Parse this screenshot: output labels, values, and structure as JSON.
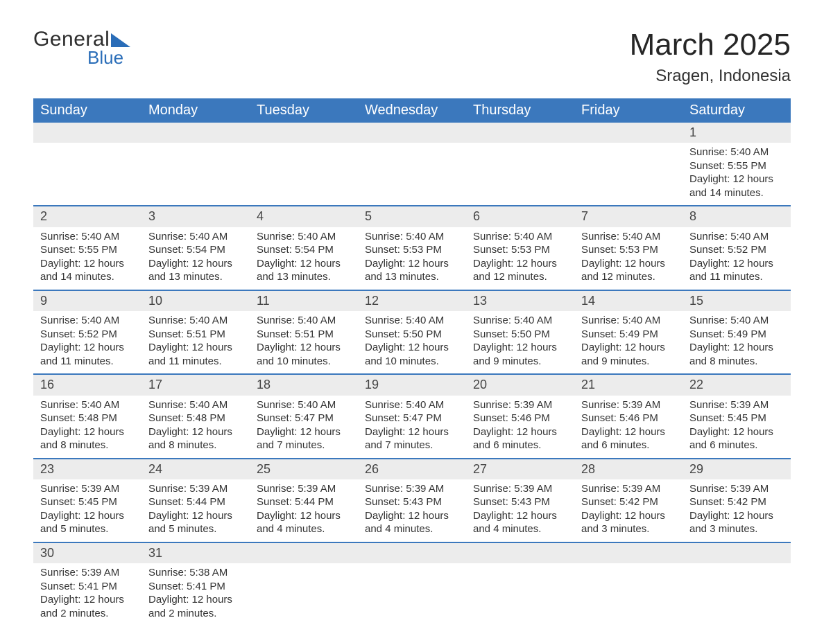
{
  "logo": {
    "line1": "General",
    "line2": "Blue"
  },
  "title": {
    "month_year": "March 2025",
    "location": "Sragen, Indonesia"
  },
  "colors": {
    "header_bg": "#3b78bd",
    "header_text": "#ffffff",
    "daynum_bg": "#ececec",
    "row_divider": "#3b78bd",
    "body_text": "#333333",
    "logo_blue": "#2a6db8",
    "page_bg": "#ffffff"
  },
  "typography": {
    "title_fontsize": 44,
    "subtitle_fontsize": 24,
    "header_fontsize": 20,
    "daynum_fontsize": 18,
    "body_fontsize": 15,
    "font_family": "Arial"
  },
  "header_days": [
    "Sunday",
    "Monday",
    "Tuesday",
    "Wednesday",
    "Thursday",
    "Friday",
    "Saturday"
  ],
  "weeks": [
    [
      null,
      null,
      null,
      null,
      null,
      null,
      {
        "n": "1",
        "sr": "Sunrise: 5:40 AM",
        "ss": "Sunset: 5:55 PM",
        "d1": "Daylight: 12 hours",
        "d2": "and 14 minutes."
      }
    ],
    [
      {
        "n": "2",
        "sr": "Sunrise: 5:40 AM",
        "ss": "Sunset: 5:55 PM",
        "d1": "Daylight: 12 hours",
        "d2": "and 14 minutes."
      },
      {
        "n": "3",
        "sr": "Sunrise: 5:40 AM",
        "ss": "Sunset: 5:54 PM",
        "d1": "Daylight: 12 hours",
        "d2": "and 13 minutes."
      },
      {
        "n": "4",
        "sr": "Sunrise: 5:40 AM",
        "ss": "Sunset: 5:54 PM",
        "d1": "Daylight: 12 hours",
        "d2": "and 13 minutes."
      },
      {
        "n": "5",
        "sr": "Sunrise: 5:40 AM",
        "ss": "Sunset: 5:53 PM",
        "d1": "Daylight: 12 hours",
        "d2": "and 13 minutes."
      },
      {
        "n": "6",
        "sr": "Sunrise: 5:40 AM",
        "ss": "Sunset: 5:53 PM",
        "d1": "Daylight: 12 hours",
        "d2": "and 12 minutes."
      },
      {
        "n": "7",
        "sr": "Sunrise: 5:40 AM",
        "ss": "Sunset: 5:53 PM",
        "d1": "Daylight: 12 hours",
        "d2": "and 12 minutes."
      },
      {
        "n": "8",
        "sr": "Sunrise: 5:40 AM",
        "ss": "Sunset: 5:52 PM",
        "d1": "Daylight: 12 hours",
        "d2": "and 11 minutes."
      }
    ],
    [
      {
        "n": "9",
        "sr": "Sunrise: 5:40 AM",
        "ss": "Sunset: 5:52 PM",
        "d1": "Daylight: 12 hours",
        "d2": "and 11 minutes."
      },
      {
        "n": "10",
        "sr": "Sunrise: 5:40 AM",
        "ss": "Sunset: 5:51 PM",
        "d1": "Daylight: 12 hours",
        "d2": "and 11 minutes."
      },
      {
        "n": "11",
        "sr": "Sunrise: 5:40 AM",
        "ss": "Sunset: 5:51 PM",
        "d1": "Daylight: 12 hours",
        "d2": "and 10 minutes."
      },
      {
        "n": "12",
        "sr": "Sunrise: 5:40 AM",
        "ss": "Sunset: 5:50 PM",
        "d1": "Daylight: 12 hours",
        "d2": "and 10 minutes."
      },
      {
        "n": "13",
        "sr": "Sunrise: 5:40 AM",
        "ss": "Sunset: 5:50 PM",
        "d1": "Daylight: 12 hours",
        "d2": "and 9 minutes."
      },
      {
        "n": "14",
        "sr": "Sunrise: 5:40 AM",
        "ss": "Sunset: 5:49 PM",
        "d1": "Daylight: 12 hours",
        "d2": "and 9 minutes."
      },
      {
        "n": "15",
        "sr": "Sunrise: 5:40 AM",
        "ss": "Sunset: 5:49 PM",
        "d1": "Daylight: 12 hours",
        "d2": "and 8 minutes."
      }
    ],
    [
      {
        "n": "16",
        "sr": "Sunrise: 5:40 AM",
        "ss": "Sunset: 5:48 PM",
        "d1": "Daylight: 12 hours",
        "d2": "and 8 minutes."
      },
      {
        "n": "17",
        "sr": "Sunrise: 5:40 AM",
        "ss": "Sunset: 5:48 PM",
        "d1": "Daylight: 12 hours",
        "d2": "and 8 minutes."
      },
      {
        "n": "18",
        "sr": "Sunrise: 5:40 AM",
        "ss": "Sunset: 5:47 PM",
        "d1": "Daylight: 12 hours",
        "d2": "and 7 minutes."
      },
      {
        "n": "19",
        "sr": "Sunrise: 5:40 AM",
        "ss": "Sunset: 5:47 PM",
        "d1": "Daylight: 12 hours",
        "d2": "and 7 minutes."
      },
      {
        "n": "20",
        "sr": "Sunrise: 5:39 AM",
        "ss": "Sunset: 5:46 PM",
        "d1": "Daylight: 12 hours",
        "d2": "and 6 minutes."
      },
      {
        "n": "21",
        "sr": "Sunrise: 5:39 AM",
        "ss": "Sunset: 5:46 PM",
        "d1": "Daylight: 12 hours",
        "d2": "and 6 minutes."
      },
      {
        "n": "22",
        "sr": "Sunrise: 5:39 AM",
        "ss": "Sunset: 5:45 PM",
        "d1": "Daylight: 12 hours",
        "d2": "and 6 minutes."
      }
    ],
    [
      {
        "n": "23",
        "sr": "Sunrise: 5:39 AM",
        "ss": "Sunset: 5:45 PM",
        "d1": "Daylight: 12 hours",
        "d2": "and 5 minutes."
      },
      {
        "n": "24",
        "sr": "Sunrise: 5:39 AM",
        "ss": "Sunset: 5:44 PM",
        "d1": "Daylight: 12 hours",
        "d2": "and 5 minutes."
      },
      {
        "n": "25",
        "sr": "Sunrise: 5:39 AM",
        "ss": "Sunset: 5:44 PM",
        "d1": "Daylight: 12 hours",
        "d2": "and 4 minutes."
      },
      {
        "n": "26",
        "sr": "Sunrise: 5:39 AM",
        "ss": "Sunset: 5:43 PM",
        "d1": "Daylight: 12 hours",
        "d2": "and 4 minutes."
      },
      {
        "n": "27",
        "sr": "Sunrise: 5:39 AM",
        "ss": "Sunset: 5:43 PM",
        "d1": "Daylight: 12 hours",
        "d2": "and 4 minutes."
      },
      {
        "n": "28",
        "sr": "Sunrise: 5:39 AM",
        "ss": "Sunset: 5:42 PM",
        "d1": "Daylight: 12 hours",
        "d2": "and 3 minutes."
      },
      {
        "n": "29",
        "sr": "Sunrise: 5:39 AM",
        "ss": "Sunset: 5:42 PM",
        "d1": "Daylight: 12 hours",
        "d2": "and 3 minutes."
      }
    ],
    [
      {
        "n": "30",
        "sr": "Sunrise: 5:39 AM",
        "ss": "Sunset: 5:41 PM",
        "d1": "Daylight: 12 hours",
        "d2": "and 2 minutes."
      },
      {
        "n": "31",
        "sr": "Sunrise: 5:38 AM",
        "ss": "Sunset: 5:41 PM",
        "d1": "Daylight: 12 hours",
        "d2": "and 2 minutes."
      },
      null,
      null,
      null,
      null,
      null
    ]
  ]
}
